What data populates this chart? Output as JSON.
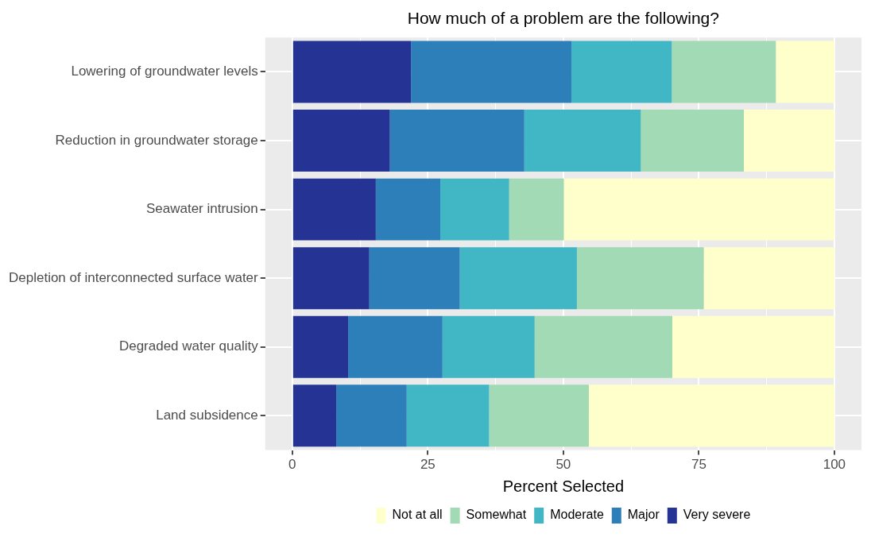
{
  "chart_data": {
    "type": "bar",
    "orientation": "horizontal",
    "stacked": true,
    "title": "How much of a problem are the following?",
    "xlabel": "Percent Selected",
    "categories": [
      "Lowering of groundwater levels",
      "Reduction in groundwater storage",
      "Seawater intrusion",
      "Depletion of interconnected surface water",
      "Degraded water quality",
      "Land subsidence"
    ],
    "series": [
      {
        "name": "Very severe",
        "color": "#253494",
        "values": [
          21.9,
          18.0,
          15.4,
          14.2,
          10.3,
          8.1
        ]
      },
      {
        "name": "Major",
        "color": "#2c7fb8",
        "values": [
          29.6,
          24.8,
          11.9,
          16.7,
          17.4,
          13.0
        ]
      },
      {
        "name": "Moderate",
        "color": "#41b6c4",
        "values": [
          18.5,
          21.5,
          12.7,
          21.6,
          17.0,
          15.2
        ]
      },
      {
        "name": "Somewhat",
        "color": "#a1dab4",
        "values": [
          19.2,
          19.0,
          10.1,
          23.4,
          25.4,
          18.4
        ]
      },
      {
        "name": "Not at all",
        "color": "#ffffcc",
        "values": [
          10.8,
          16.7,
          49.9,
          24.1,
          29.9,
          45.3
        ]
      }
    ],
    "xlim": [
      -5,
      105
    ],
    "xticks": [
      0,
      {
        "value": 12.5,
        "label": null
      },
      25,
      {
        "value": 37.5,
        "label": null
      },
      50,
      {
        "value": 62.5,
        "label": null
      },
      75,
      {
        "value": 87.5,
        "label": null
      },
      100
    ],
    "grid": true,
    "legend": "bottom"
  }
}
